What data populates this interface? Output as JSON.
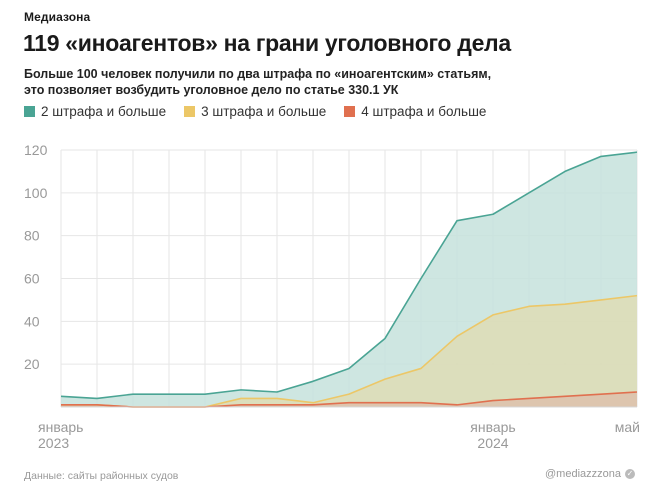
{
  "brand": "Медиазона",
  "title": "119 «иноагентов» на грани уголовного дела",
  "subtitle_line1": "Больше 100 человек получили по два штрафа по «иноагентским» статьям,",
  "subtitle_line2": "это позволяет возбудить уголовное дело по статье 330.1 УК",
  "footer_source": "Данные: сайты районных судов",
  "footer_handle": "@mediazzzona",
  "colors": {
    "s2": "#4aa494",
    "s2_fill": "#c6e2dc",
    "s3": "#ecc767",
    "s3_fill": "#dedcb5",
    "s4": "#e0704f",
    "s4_fill": "#ddc1ab",
    "grid": "#e6e6e6"
  },
  "chart_data": {
    "type": "area",
    "x": [
      "2023-01",
      "2023-02",
      "2023-03",
      "2023-04",
      "2023-05",
      "2023-06",
      "2023-07",
      "2023-08",
      "2023-09",
      "2023-10",
      "2023-11",
      "2023-12",
      "2024-01",
      "2024-02",
      "2024-03",
      "2024-04",
      "2024-05"
    ],
    "series": [
      {
        "name": "2 штрафа и больше",
        "values": [
          5,
          4,
          6,
          6,
          6,
          8,
          7,
          12,
          18,
          32,
          60,
          87,
          90,
          100,
          110,
          117,
          119
        ]
      },
      {
        "name": "3 штрафа и больше",
        "values": [
          1,
          1,
          0,
          0,
          0,
          4,
          4,
          2,
          6,
          13,
          18,
          33,
          43,
          47,
          48,
          50,
          52
        ]
      },
      {
        "name": "4 штрафа и больше",
        "values": [
          1,
          1,
          0,
          0,
          0,
          1,
          1,
          1,
          2,
          2,
          2,
          1,
          3,
          4,
          5,
          6,
          7
        ]
      }
    ],
    "ylim": [
      0,
      120
    ],
    "yticks": [
      "20",
      "40",
      "60",
      "80",
      "100",
      "120"
    ],
    "xtick_labels": [
      {
        "x": "2023-01",
        "line1": "январь",
        "line2": "2023"
      },
      {
        "x": "2024-01",
        "line1": "январь",
        "line2": "2024"
      },
      {
        "x": "2024-05",
        "line1": "май",
        "line2": ""
      }
    ],
    "grid": true,
    "legend": "top-left"
  }
}
